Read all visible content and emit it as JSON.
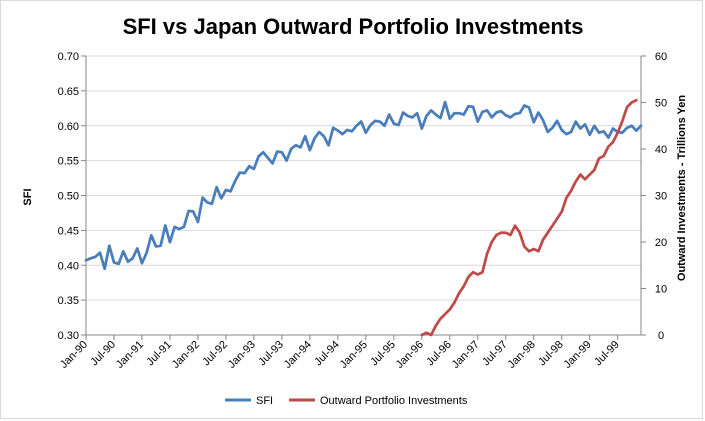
{
  "chart_data": {
    "type": "line",
    "title": "SFI vs Japan Outward Portfolio Investments",
    "ylabel": "SFI",
    "y2label": "Outward Investments - Trillions  Yen",
    "ylim": [
      0.3,
      0.7
    ],
    "y2lim": [
      0,
      60
    ],
    "yticks": [
      "0.30",
      "0.35",
      "0.40",
      "0.45",
      "0.50",
      "0.55",
      "0.60",
      "0.65",
      "0.70"
    ],
    "y2ticks": [
      "0",
      "10",
      "20",
      "30",
      "40",
      "50",
      "60"
    ],
    "xticks": [
      "Jan-90",
      "Jul-90",
      "Jan-91",
      "Jul-91",
      "Jan-92",
      "Jul-92",
      "Jan-93",
      "Jul-93",
      "Jan-94",
      "Jul-94",
      "Jan-95",
      "Jul-95",
      "Jan-96",
      "Jul-96",
      "Jan-97",
      "Jul-97",
      "Jan-98",
      "Jul-98",
      "Jan-99",
      "Jul-99"
    ],
    "x_start": "Jan-90",
    "x_end": "Dec-99",
    "grid": "horizontal",
    "legend": "bottom",
    "colors": {
      "sfi": "#4a7ebb",
      "opi": "#be4b48"
    },
    "series": [
      {
        "name": "SFI",
        "axis": "left",
        "start_month_index": 0,
        "values": [
          0.407,
          0.41,
          0.412,
          0.418,
          0.395,
          0.428,
          0.404,
          0.402,
          0.42,
          0.405,
          0.41,
          0.424,
          0.403,
          0.418,
          0.443,
          0.427,
          0.428,
          0.457,
          0.433,
          0.455,
          0.452,
          0.455,
          0.478,
          0.477,
          0.462,
          0.497,
          0.49,
          0.488,
          0.512,
          0.496,
          0.508,
          0.506,
          0.521,
          0.533,
          0.532,
          0.542,
          0.538,
          0.556,
          0.562,
          0.554,
          0.546,
          0.563,
          0.562,
          0.55,
          0.567,
          0.572,
          0.569,
          0.585,
          0.565,
          0.582,
          0.591,
          0.585,
          0.572,
          0.597,
          0.593,
          0.588,
          0.594,
          0.592,
          0.6,
          0.606,
          0.59,
          0.601,
          0.607,
          0.606,
          0.6,
          0.616,
          0.603,
          0.601,
          0.619,
          0.614,
          0.612,
          0.618,
          0.596,
          0.614,
          0.622,
          0.616,
          0.611,
          0.634,
          0.61,
          0.618,
          0.618,
          0.616,
          0.628,
          0.627,
          0.606,
          0.62,
          0.622,
          0.612,
          0.619,
          0.621,
          0.615,
          0.612,
          0.617,
          0.618,
          0.629,
          0.626,
          0.605,
          0.619,
          0.608,
          0.591,
          0.597,
          0.607,
          0.594,
          0.588,
          0.591,
          0.606,
          0.596,
          0.602,
          0.587,
          0.6,
          0.59,
          0.592,
          0.583,
          0.596,
          0.591,
          0.59,
          0.597,
          0.6,
          0.593,
          0.6
        ]
      },
      {
        "name": "Outward Portfolio Investments",
        "axis": "right",
        "start_month_index": 72,
        "values": [
          0,
          0.5,
          0,
          2,
          3.5,
          4.5,
          5.5,
          7,
          9,
          10.5,
          12.5,
          13.5,
          13,
          13.5,
          17.5,
          20,
          21.5,
          22,
          22,
          21.5,
          23.5,
          22,
          19,
          18,
          18.5,
          18,
          20.5,
          22,
          23.5,
          25,
          26.5,
          29.5,
          31,
          33,
          34.5,
          33.5,
          34.5,
          35.5,
          38,
          38.5,
          40.5,
          41.5,
          43.5,
          46,
          49,
          50,
          50.5
        ]
      }
    ]
  }
}
